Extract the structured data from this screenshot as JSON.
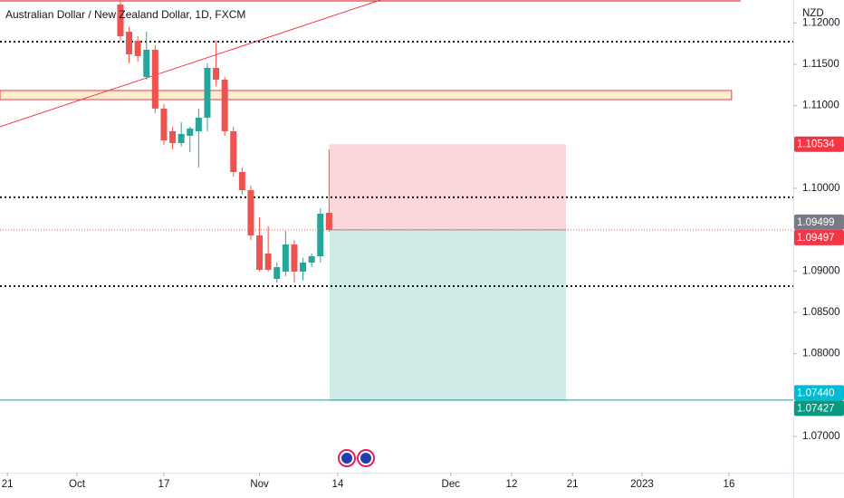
{
  "chart_data": {
    "type": "candlestick",
    "title": "Australian Dollar / New Zealand Dollar, 1D, FXCM",
    "currency": "NZD",
    "x": [
      5,
      6,
      7,
      8,
      9,
      10,
      11,
      12,
      13,
      14,
      15,
      16,
      17,
      18,
      19,
      20,
      21,
      22,
      23,
      24,
      25,
      26,
      27,
      28,
      29
    ],
    "open": [
      1.12223,
      1.11894,
      1.11785,
      1.11347,
      1.11675,
      1.10964,
      1.1069,
      1.10547,
      1.10635,
      1.1069,
      1.10854,
      1.11456,
      1.11314,
      1.1069,
      1.10197,
      1.09978,
      1.09431,
      1.09212,
      1.08905,
      1.08993,
      1.09321,
      1.08993,
      1.09102,
      1.09179,
      1.09704
    ],
    "high": [
      1.12277,
      1.11949,
      1.11839,
      1.11894,
      1.1173,
      1.11018,
      1.10745,
      1.10799,
      1.10745,
      1.10964,
      1.11511,
      1.11785,
      1.11347,
      1.10745,
      1.10252,
      1.10033,
      1.0965,
      1.0954,
      1.09102,
      1.09485,
      1.09376,
      1.09157,
      1.09212,
      1.09759,
      1.10471
    ],
    "low": [
      1.11785,
      1.11511,
      1.11533,
      1.11314,
      1.10909,
      1.10526,
      1.10471,
      1.10504,
      1.10438,
      1.10252,
      1.1069,
      1.11237,
      1.10635,
      1.10142,
      1.09923,
      1.09376,
      1.08993,
      1.08993,
      1.08861,
      1.08938,
      1.08861,
      1.08883,
      1.09047,
      1.09102,
      1.09474
    ],
    "close": [
      1.11839,
      1.11621,
      1.11599,
      1.11675,
      1.10964,
      1.1058,
      1.10547,
      1.10657,
      1.10723,
      1.10854,
      1.11456,
      1.11314,
      1.1069,
      1.10197,
      1.09978,
      1.09431,
      1.09015,
      1.09015,
      1.09047,
      1.09321,
      1.08993,
      1.09102,
      1.09179,
      1.09693,
      1.09497
    ],
    "up_color": "#26a69a",
    "down_color": "#ef5350",
    "xlim": [
      -8.85,
      82.4
    ],
    "xticks": [
      {
        "value": -8,
        "label": "21"
      },
      {
        "value": 0,
        "label": "Oct"
      },
      {
        "value": 10,
        "label": "17"
      },
      {
        "value": 21,
        "label": "Nov"
      },
      {
        "value": 30,
        "label": "14"
      },
      {
        "value": 43,
        "label": "Dec"
      },
      {
        "value": 50,
        "label": "12"
      },
      {
        "value": 57,
        "label": "21"
      },
      {
        "value": 65,
        "label": "2023"
      },
      {
        "value": 75,
        "label": "16"
      }
    ],
    "ylim": [
      1.06562,
      1.12277
    ],
    "yticks": [
      {
        "value": 1.12,
        "label": "1.12000"
      },
      {
        "value": 1.115,
        "label": "1.11500"
      },
      {
        "value": 1.11,
        "label": "1.11000"
      },
      {
        "value": 1.1,
        "label": "1.10000"
      },
      {
        "value": 1.09,
        "label": "1.09000"
      },
      {
        "value": 1.085,
        "label": "1.08500"
      },
      {
        "value": 1.08,
        "label": "1.08000"
      },
      {
        "value": 1.07,
        "label": "1.07000"
      }
    ],
    "lines": [
      {
        "value": 1.12266,
        "color": "#f23645",
        "style": "solid",
        "x_end": 76.35
      },
      {
        "value": 1.11774,
        "color": "#131722",
        "style": "dotted"
      },
      {
        "value": 1.09891,
        "color": "#131722",
        "style": "dotted"
      },
      {
        "value": 1.08817,
        "color": "#131722",
        "style": "dotted"
      },
      {
        "value": 1.0744,
        "color": "#00bcd4",
        "style": "solid"
      }
    ],
    "zone": {
      "top": 1.11183,
      "bottom": 1.11073,
      "x_end": 75.3,
      "color": "#f23645"
    },
    "trendline": {
      "x": [
        -8.85,
        34.9
      ],
      "y": [
        1.10745,
        1.12277
      ],
      "color": "#f23645"
    },
    "position": {
      "x": [
        29.06,
        56.25
      ],
      "entry": 1.09497,
      "stop": 1.10534,
      "target": 1.07427
    },
    "last_price_line": true,
    "price_labels": [
      {
        "value": 1.10534,
        "label": "1.10534",
        "color": "#f23645"
      },
      {
        "value": 1.09499,
        "label": "1.09499",
        "color": "#787b86"
      },
      {
        "value": 1.09497,
        "label": "1.09497",
        "color": "#f23645"
      },
      {
        "value": 1.0744,
        "label": "1.07440",
        "color": "#00bcd4"
      },
      {
        "value": 1.07427,
        "label": "1.07427",
        "color": "#089981"
      }
    ]
  }
}
